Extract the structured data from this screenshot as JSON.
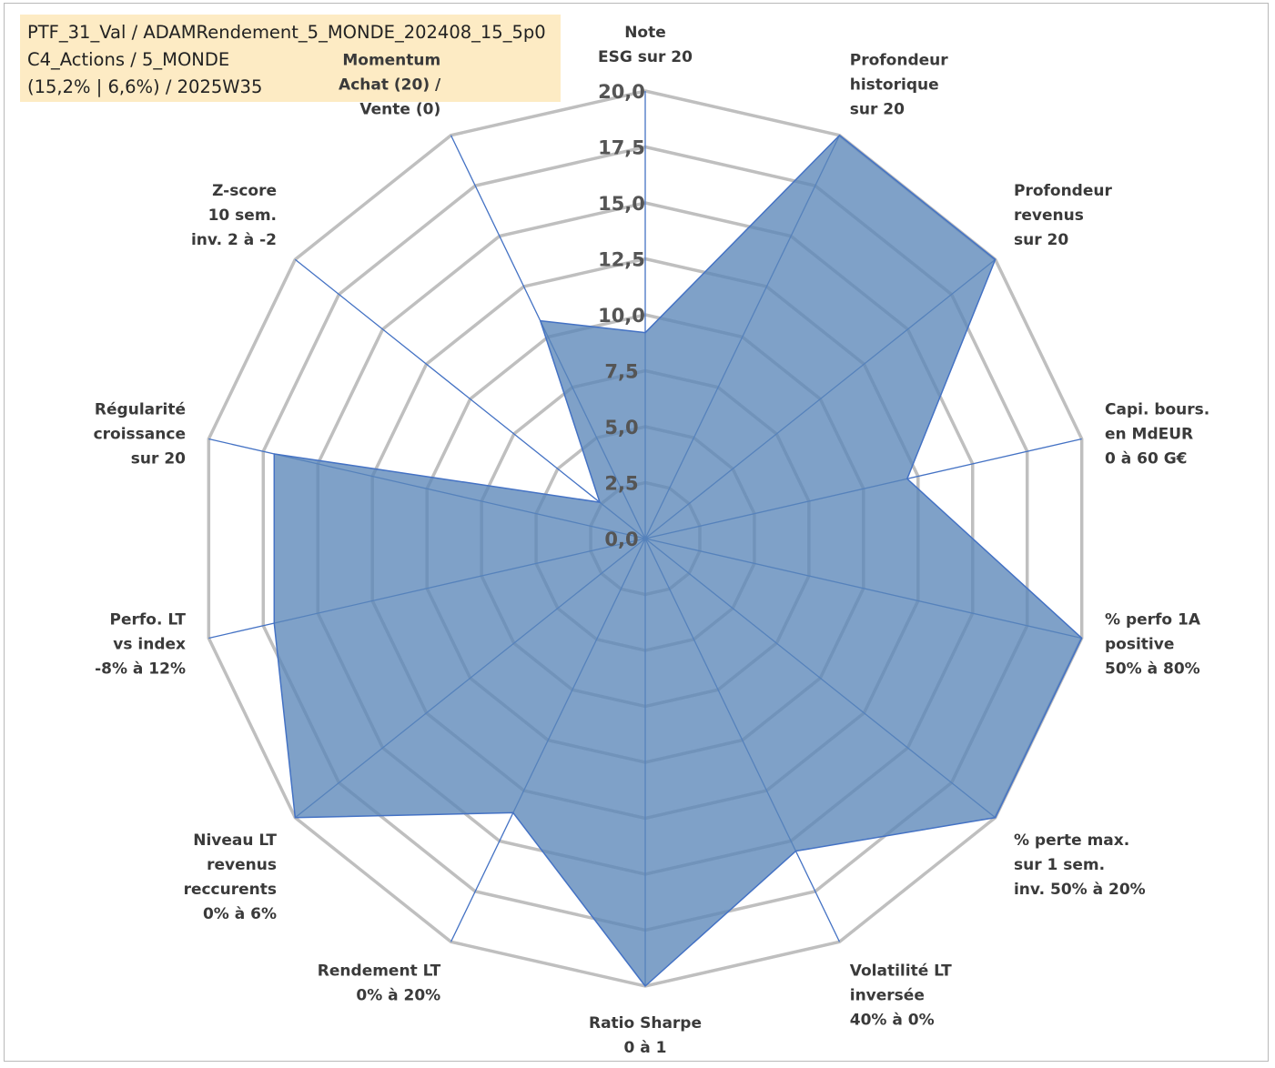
{
  "header": {
    "line1": "PTF_31_Val / ADAMRendement_5_MONDE_202408_15_5p0",
    "line2": "C4_Actions / 5_MONDE",
    "line3": "(15,2% | 6,6%) / 2025W35"
  },
  "colors": {
    "fill": "#5b86b8",
    "stroke": "#4472c4",
    "grid": "#bfbfbf",
    "momentum_label": "#b5aa92"
  },
  "chart_data": {
    "type": "radar",
    "rmin": 0,
    "rmax": 20,
    "tick_values": [
      0,
      2.5,
      5,
      7.5,
      10,
      12.5,
      15,
      17.5,
      20
    ],
    "tick_labels": [
      "0,0",
      "2,5",
      "5,0",
      "7,5",
      "10,0",
      "12,5",
      "15,0",
      "17,5",
      "20,0"
    ],
    "axes": [
      {
        "lines": [
          "Note",
          "ESG sur 20"
        ],
        "value": 9.2
      },
      {
        "lines": [
          "Profondeur",
          "historique",
          "sur 20"
        ],
        "value": 20
      },
      {
        "lines": [
          "Profondeur",
          "revenus",
          "sur 20"
        ],
        "value": 20
      },
      {
        "lines": [
          "Capi. bours.",
          "en MdEUR",
          "0 à 60 G€"
        ],
        "value": 12.0
      },
      {
        "lines": [
          "% perfo 1A",
          "positive",
          "50% à 80%"
        ],
        "value": 20
      },
      {
        "lines": [
          "% perte max.",
          "sur 1 sem.",
          "inv. 50% à 20%"
        ],
        "value": 20
      },
      {
        "lines": [
          "Volatilité LT",
          "inversée",
          "40% à 0%"
        ],
        "value": 15.5
      },
      {
        "lines": [
          "Ratio Sharpe",
          "0 à 1"
        ],
        "value": 20
      },
      {
        "lines": [
          "Rendement LT",
          "0% à 20%"
        ],
        "value": 13.6
      },
      {
        "lines": [
          "Niveau LT",
          "revenus",
          "reccurents",
          "0% à 6%"
        ],
        "value": 20
      },
      {
        "lines": [
          "Perfo. LT",
          "vs index",
          "-8% à 12%"
        ],
        "value": 17.0
      },
      {
        "lines": [
          "Régularité",
          "croissance",
          "sur 20"
        ],
        "value": 17.0
      },
      {
        "lines": [
          "Z-score",
          "10 sem.",
          "inv. 2 à -2"
        ],
        "value": 2.6
      },
      {
        "lines": [
          "Momentum",
          "Achat (20) /",
          "Vente (0)"
        ],
        "value": 10.8
      }
    ]
  }
}
